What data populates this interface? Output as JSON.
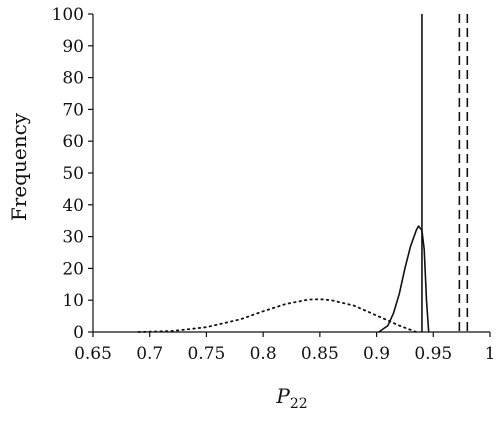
{
  "chart_data": {
    "type": "line",
    "title": "",
    "xlabel": "P",
    "xlabel_sub": "22",
    "ylabel": "Frequency",
    "xlim": [
      0.65,
      1.0
    ],
    "ylim": [
      0,
      100
    ],
    "xticks": [
      "0.65",
      "0.7",
      "0.75",
      "0.8",
      "0.85",
      "0.9",
      "0.95",
      "1"
    ],
    "yticks": [
      "0",
      "10",
      "20",
      "30",
      "40",
      "50",
      "60",
      "70",
      "80",
      "90",
      "100"
    ],
    "grid": false,
    "legend": "none",
    "series": [
      {
        "style": "dotted",
        "x": [
          0.69,
          0.72,
          0.75,
          0.78,
          0.8,
          0.82,
          0.84,
          0.85,
          0.86,
          0.88,
          0.9,
          0.92,
          0.935
        ],
        "y": [
          0,
          0.3,
          1.5,
          4,
          6.5,
          8.8,
          10.2,
          10.3,
          10,
          8.3,
          5.2,
          2,
          0
        ]
      },
      {
        "style": "solid",
        "x": [
          0.902,
          0.91,
          0.915,
          0.92,
          0.925,
          0.93,
          0.935,
          0.937,
          0.94,
          0.942,
          0.944,
          0.946
        ],
        "y": [
          0,
          2,
          6,
          12,
          20,
          27,
          32,
          33.3,
          32,
          26,
          10,
          0
        ]
      }
    ],
    "vlines": [
      {
        "x": 0.94,
        "style": "solid"
      },
      {
        "x": 0.973,
        "style": "dashed"
      },
      {
        "x": 0.98,
        "style": "dashed"
      }
    ]
  }
}
